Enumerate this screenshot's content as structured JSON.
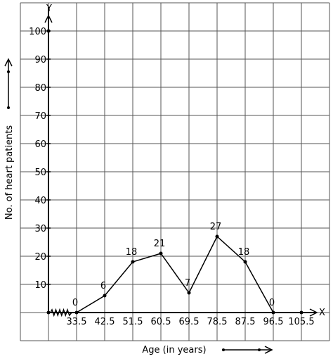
{
  "chart_data": {
    "type": "line",
    "title": "",
    "xlabel": "Age (in years)",
    "ylabel": "No. of heart patients",
    "x_axis_name": "X",
    "y_axis_name": "Y",
    "x_tick_labels": [
      "33.5",
      "42.5",
      "51.5",
      "60.5",
      "69.5",
      "78.5",
      "87.5",
      "96.5",
      "105.5"
    ],
    "y_tick_labels": [
      "10",
      "20",
      "30",
      "40",
      "50",
      "60",
      "70",
      "80",
      "90",
      "100"
    ],
    "ylim": [
      0,
      100
    ],
    "grid": true,
    "axis_break": true,
    "series": [
      {
        "x": [
          33,
          42,
          51,
          60,
          69,
          78,
          87,
          96,
          105
        ],
        "y": [
          0,
          6,
          18,
          21,
          7,
          27,
          18,
          0,
          0
        ],
        "point_labels": [
          "0",
          "6",
          "18",
          "21",
          "7",
          "27",
          "18",
          "0",
          ""
        ]
      }
    ]
  }
}
